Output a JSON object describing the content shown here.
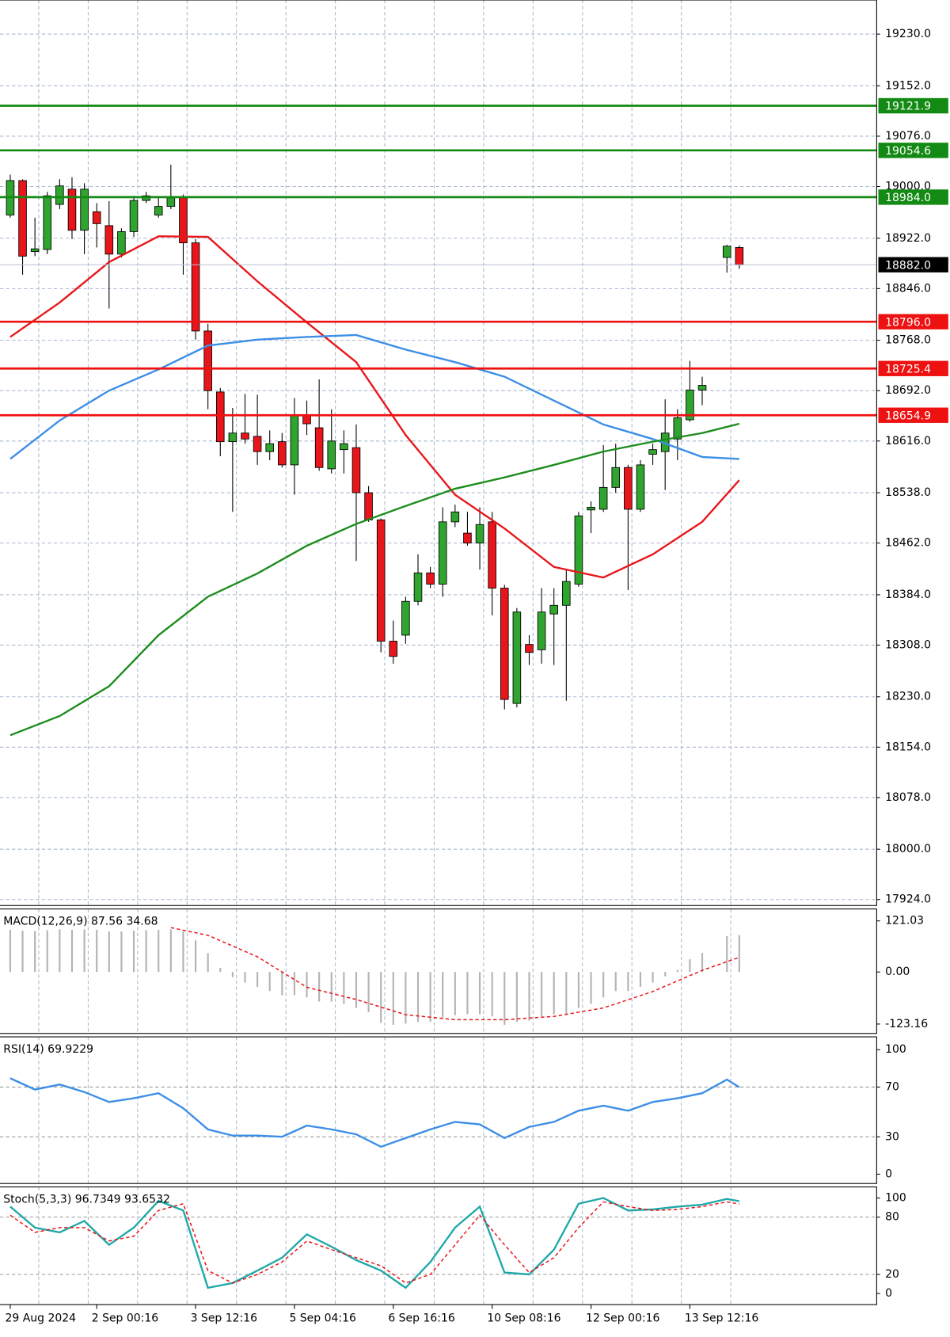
{
  "chart_data": [
    {
      "type": "candlestick",
      "categories": [
        "29 Aug 2024",
        null,
        null,
        null,
        null,
        null,
        null,
        "2 Sep 00:16",
        null,
        null,
        null,
        null,
        null,
        null,
        null,
        "3 Sep 12:16",
        null,
        null,
        null,
        null,
        null,
        null,
        null,
        "5 Sep 04:16",
        null,
        null,
        null,
        null,
        null,
        null,
        null,
        "6 Sep 16:16",
        null,
        null,
        null,
        null,
        null,
        null,
        null,
        "10 Sep 08:16",
        null,
        null,
        null,
        null,
        null,
        null,
        null,
        "12 Sep 00:16",
        null,
        null,
        null,
        null,
        null,
        null,
        null,
        "13 Sep 12:16",
        null,
        null,
        null,
        null
      ],
      "open": [
        18957,
        19009,
        18902,
        18905,
        18973,
        18996,
        18934,
        18962,
        18941,
        18898,
        18932,
        18979,
        18957,
        18970,
        18983,
        18915,
        18782,
        18690,
        18615,
        18628,
        18623,
        18600,
        18615,
        18580,
        18655,
        18636,
        18574,
        18603,
        18606,
        18538,
        18497,
        18314,
        18323,
        18374,
        18417,
        18400,
        18494,
        18477,
        18462,
        18494,
        18394,
        18220,
        18309,
        18301,
        18355,
        18368,
        18400,
        18512,
        18513,
        18546,
        18576,
        18513,
        18596,
        18600,
        18619,
        18648,
        18693,
        null,
        18893,
        18908
      ],
      "high": [
        19018,
        19011,
        18953,
        18992,
        19011,
        19014,
        19005,
        18975,
        18978,
        18937,
        18986,
        18992,
        18983,
        19033,
        18988,
        18921,
        18793,
        18696,
        18666,
        18687,
        18686,
        18632,
        18628,
        18681,
        18677,
        18709,
        18664,
        18632,
        18641,
        18548,
        18499,
        18345,
        18381,
        18445,
        18426,
        18516,
        18520,
        18509,
        18516,
        18509,
        18399,
        18364,
        18323,
        18394,
        18394,
        18422,
        18509,
        18525,
        18610,
        18612,
        18580,
        18587,
        18612,
        18679,
        18664,
        18737,
        18713,
        null,
        18912,
        18911
      ],
      "low": [
        18953,
        18867,
        18895,
        18898,
        18966,
        18921,
        18898,
        18908,
        18816,
        18893,
        18924,
        18975,
        18953,
        18966,
        18867,
        18769,
        18664,
        18593,
        18509,
        18612,
        18580,
        18587,
        18576,
        18535,
        18625,
        18571,
        18567,
        18567,
        18435,
        18494,
        18297,
        18280,
        18310,
        18368,
        18394,
        18381,
        18486,
        18458,
        18422,
        18353,
        18211,
        18214,
        18278,
        18280,
        18278,
        18224,
        18396,
        18477,
        18509,
        18538,
        18391,
        18509,
        18580,
        18542,
        18587,
        18645,
        18670,
        null,
        18870,
        18876
      ],
      "close": [
        19009,
        18895,
        18906,
        18986,
        19001,
        18934,
        18996,
        18944,
        18898,
        18932,
        18979,
        18986,
        18970,
        18983,
        18915,
        18782,
        18692,
        18615,
        18628,
        18619,
        18600,
        18612,
        18580,
        18655,
        18642,
        18576,
        18616,
        18612,
        18538,
        18497,
        18314,
        18291,
        18374,
        18417,
        18400,
        18494,
        18509,
        18462,
        18490,
        18394,
        18226,
        18358,
        18297,
        18358,
        18368,
        18404,
        18503,
        18516,
        18546,
        18576,
        18513,
        18580,
        18603,
        18628,
        18651,
        18693,
        18700,
        null,
        18910,
        18882
      ],
      "up_color": "#2fa52f",
      "down_color": "#e8161b",
      "series": [
        {
          "color": "#e8161b",
          "x": [
            0,
            4,
            8,
            12,
            16,
            20,
            24,
            28,
            32,
            36,
            40,
            44,
            48,
            52,
            56,
            59
          ],
          "values": [
            18773,
            18825,
            18886,
            18925,
            18924,
            18857,
            18795,
            18735,
            18625,
            18535,
            18484,
            18426,
            18410,
            18445,
            18494,
            18557
          ]
        },
        {
          "color": "#3c8ee6",
          "x": [
            0,
            4,
            8,
            12,
            16,
            20,
            24,
            28,
            32,
            36,
            40,
            44,
            48,
            52,
            56,
            59
          ],
          "values": [
            18589,
            18647,
            18692,
            18724,
            18760,
            18769,
            18773,
            18776,
            18754,
            18735,
            18713,
            18677,
            18641,
            18619,
            18592,
            18589
          ]
        },
        {
          "color": "#1c8c1c",
          "x": [
            0,
            4,
            8,
            12,
            16,
            20,
            24,
            28,
            32,
            36,
            40,
            44,
            48,
            52,
            56,
            59
          ],
          "values": [
            18172,
            18201,
            18246,
            18323,
            18381,
            18416,
            18458,
            18491,
            18518,
            18544,
            18561,
            18580,
            18600,
            18615,
            18628,
            18642
          ]
        }
      ],
      "levels": [
        {
          "value": 19121.9,
          "color": "#138a13"
        },
        {
          "value": 19054.6,
          "color": "#138a13"
        },
        {
          "value": 18984,
          "label": "18984.0",
          "color": "#138a13"
        },
        {
          "value": 18796,
          "label": "18796.0",
          "color": "#ee1111"
        },
        {
          "value": 18725.4,
          "color": "#ee1111"
        },
        {
          "value": 18654.9,
          "color": "#ee1111"
        }
      ],
      "last_price": {
        "value": 18882,
        "label": "18882.0"
      },
      "ylim": [
        17915,
        19281.5
      ],
      "yticks": [
        {
          "value": 19230,
          "label": "19230.0"
        },
        {
          "value": 19152,
          "label": "19152.0"
        },
        {
          "value": 19076,
          "label": "19076.0"
        },
        {
          "value": 19000,
          "label": "19000.0"
        },
        {
          "value": 18922,
          "label": "18922.0"
        },
        {
          "value": 18846,
          "label": "18846.0"
        },
        {
          "value": 18768,
          "label": "18768.0"
        },
        {
          "value": 18692,
          "label": "18692.0"
        },
        {
          "value": 18616,
          "label": "18616.0"
        },
        {
          "value": 18538,
          "label": "18538.0"
        },
        {
          "value": 18462,
          "label": "18462.0"
        },
        {
          "value": 18384,
          "label": "18384.0"
        },
        {
          "value": 18308,
          "label": "18308.0"
        },
        {
          "value": 18230,
          "label": "18230.0"
        },
        {
          "value": 18154,
          "label": "18154.0"
        },
        {
          "value": 18078,
          "label": "18078.0"
        },
        {
          "value": 18000,
          "label": "18000.0"
        },
        {
          "value": 17924,
          "label": "17924.0"
        }
      ],
      "grid": true
    },
    {
      "type": "bar",
      "title": "MACD(12,26,9) 87.56 34.68",
      "values": [
        100,
        98,
        97,
        99,
        101,
        100,
        101,
        100,
        96,
        96,
        98,
        99,
        100,
        101,
        96,
        75,
        45,
        10,
        -12,
        -25,
        -35,
        -45,
        -55,
        -55,
        -60,
        -70,
        -70,
        -75,
        -85,
        -95,
        -120,
        -125,
        -122,
        -118,
        -118,
        -108,
        -102,
        -100,
        -100,
        -105,
        -125,
        -118,
        -115,
        -105,
        -100,
        -100,
        -85,
        -75,
        -60,
        -45,
        -45,
        -35,
        -25,
        -10,
        5,
        30,
        45,
        null,
        85,
        87.56
      ],
      "color": "#b4b4b4",
      "series": [
        {
          "color": "#e8161b",
          "dashed": true,
          "x": [
            13,
            16,
            20,
            24,
            28,
            32,
            36,
            40,
            44,
            48,
            52,
            56,
            59
          ],
          "values": [
            105,
            87,
            36,
            -36,
            -65,
            -101,
            -113,
            -113,
            -105,
            -85,
            -46,
            4,
            34.68
          ]
        }
      ],
      "ylim": [
        -145.4,
        149.3
      ],
      "yticks": [
        121.03,
        {
          "value": 0,
          "label": "0.00"
        },
        -123.16
      ],
      "grid": false
    },
    {
      "type": "line",
      "title": "RSI(14) 69.9229",
      "series": [
        {
          "color": "#3c8ee6",
          "x": [
            0,
            2,
            4,
            6,
            8,
            10,
            12,
            14,
            16,
            18,
            20,
            22,
            24,
            26,
            28,
            30,
            32,
            34,
            36,
            38,
            40,
            42,
            44,
            46,
            48,
            50,
            52,
            54,
            56,
            58,
            59
          ],
          "values": [
            77,
            68,
            72,
            66,
            58,
            61,
            65,
            53,
            36,
            31,
            31,
            30,
            39,
            36,
            32,
            22,
            29,
            36,
            42,
            40,
            29,
            38,
            42,
            51,
            55,
            51,
            58,
            61,
            65,
            76,
            69.9229
          ]
        }
      ],
      "ylim": [
        -7.5,
        110.3
      ],
      "yticks": [
        100,
        70,
        30,
        0
      ],
      "grid": "inner"
    },
    {
      "type": "line",
      "title": "Stoch(5,3,3) 96.7349 93.6532",
      "series": [
        {
          "color": "#20a8a8",
          "x": [
            0,
            2,
            4,
            6,
            8,
            10,
            12,
            14,
            16,
            18,
            20,
            22,
            24,
            26,
            28,
            30,
            32,
            34,
            36,
            38,
            40,
            42,
            44,
            46,
            48,
            50,
            52,
            54,
            56,
            58,
            59
          ],
          "values": [
            91,
            69,
            64,
            76,
            51,
            69,
            97,
            87,
            6,
            11,
            24,
            37.5,
            62,
            49,
            35,
            24,
            6,
            33,
            69,
            91,
            22,
            20,
            46,
            94,
            100,
            87,
            88,
            91,
            93,
            99,
            96.7349
          ]
        },
        {
          "color": "#e8161b",
          "dashed": true,
          "x": [
            0,
            2,
            4,
            6,
            8,
            10,
            12,
            14,
            16,
            18,
            20,
            22,
            24,
            26,
            28,
            30,
            32,
            34,
            36,
            38,
            40,
            42,
            44,
            46,
            48,
            50,
            52,
            54,
            56,
            58,
            59
          ],
          "values": [
            82,
            64,
            69,
            69,
            55,
            60,
            87,
            94,
            24,
            11,
            20,
            33,
            55,
            46,
            37.5,
            29,
            11,
            20,
            51,
            82,
            51,
            22,
            37.5,
            69,
            96,
            91,
            87,
            88,
            91,
            96,
            93.6532
          ]
        }
      ],
      "ylim": [
        -11.6,
        111.6
      ],
      "yticks": [
        100,
        80,
        20,
        0
      ],
      "grid": "inner"
    }
  ]
}
